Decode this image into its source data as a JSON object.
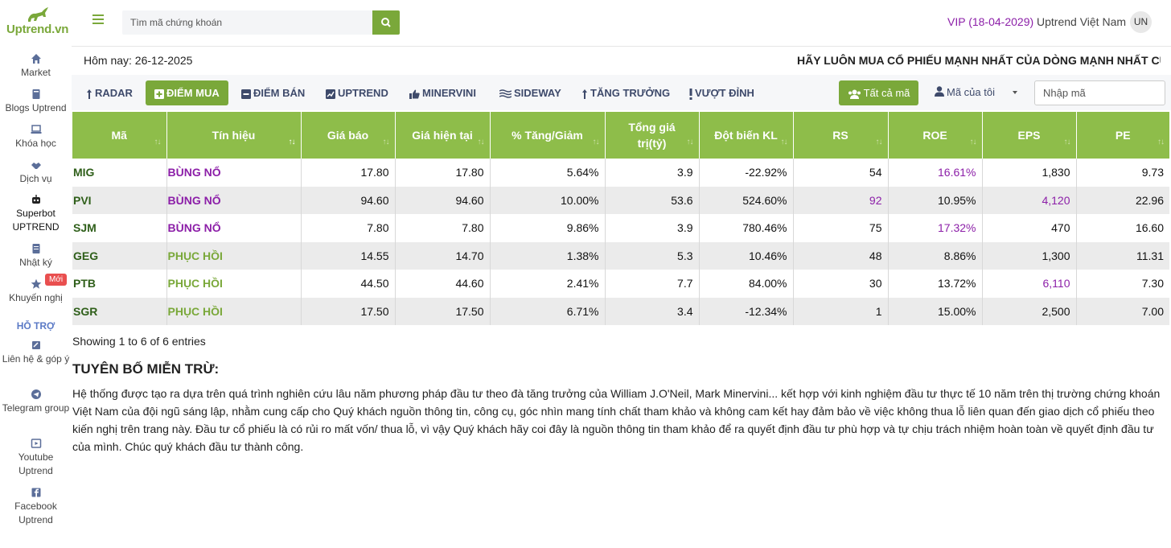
{
  "sidebar": {
    "brand": "Uptrend.vn",
    "items": [
      {
        "label": "Market",
        "icon": "home-icon"
      },
      {
        "label": "Blogs Uptrend",
        "icon": "book-icon"
      },
      {
        "label": "Khóa học",
        "icon": "laptop-icon"
      },
      {
        "label": "Dịch vụ",
        "icon": "handshake-icon"
      },
      {
        "label": "Superbot UPTREND",
        "icon": "robot-icon"
      },
      {
        "label": "Nhật ký",
        "icon": "journal-icon"
      },
      {
        "label": "Khuyến nghị",
        "icon": "star-icon"
      }
    ],
    "new_badge": "Mới",
    "support_heading": "HỖ TRỢ",
    "support_items": [
      {
        "label": "Liên hệ & góp ý",
        "icon": "feedback-icon"
      },
      {
        "label": "Telegram group",
        "icon": "telegram-icon"
      },
      {
        "label": "Youtube Uptrend",
        "icon": "youtube-icon"
      },
      {
        "label": "Facebook Uptrend",
        "icon": "facebook-icon"
      }
    ]
  },
  "header": {
    "search_placeholder": "Tìm mã chứng khoán",
    "vip": "VIP (18-04-2029)",
    "user_name": "Uptrend Việt Nam",
    "avatar_initials": "UN"
  },
  "today": "Hôm nay: 26-12-2025",
  "slogan": "HÃY LUÔN MUA CỔ PHIẾU MẠNH NHẤT CỦA DÒNG MẠNH NHẤT CỦA TI",
  "tabs": [
    {
      "label": "RADAR",
      "icon": "arrow-up-icon"
    },
    {
      "label": "ĐIỂM MUA",
      "icon": "plus-square-icon"
    },
    {
      "label": "ĐIỂM BÁN",
      "icon": "minus-square-icon"
    },
    {
      "label": "UPTREND",
      "icon": "chart-icon"
    },
    {
      "label": "MINERVINI",
      "icon": "thumbs-up-icon"
    },
    {
      "label": "SIDEWAY",
      "icon": "waves-icon"
    },
    {
      "label": "TĂNG TRƯỞNG",
      "icon": "arrow-up-icon"
    },
    {
      "label": "VƯỢT ĐỈNH",
      "icon": "exclamation-icon"
    }
  ],
  "filter": {
    "all_label": "Tất cả mã",
    "mine_label": "Mã của tôi",
    "code_placeholder": "Nhập mã"
  },
  "table": {
    "columns": [
      "Mã",
      "Tín hiệu",
      "Giá báo",
      "Giá hiện tại",
      "% Tăng/Giảm",
      "Tổng giá trị(tỷ)",
      "Đột biến KL",
      "RS",
      "ROE",
      "EPS",
      "PE"
    ],
    "rows": [
      {
        "ma": "MIG",
        "tin_hieu": "BÙNG NỔ",
        "gia_bao": "17.80",
        "gia_hien_tai": "17.80",
        "pct": "5.64%",
        "tong_gia_tri": "3.9",
        "dot_bien_kl": "-22.92%",
        "rs": "54",
        "roe": "16.61%",
        "eps": "1,830",
        "pe": "9.73"
      },
      {
        "ma": "PVI",
        "tin_hieu": "BÙNG NỔ",
        "gia_bao": "94.60",
        "gia_hien_tai": "94.60",
        "pct": "10.00%",
        "tong_gia_tri": "53.6",
        "dot_bien_kl": "524.60%",
        "rs": "92",
        "roe": "10.95%",
        "eps": "4,120",
        "pe": "22.96"
      },
      {
        "ma": "SJM",
        "tin_hieu": "BÙNG NỔ",
        "gia_bao": "7.80",
        "gia_hien_tai": "7.80",
        "pct": "9.86%",
        "tong_gia_tri": "3.9",
        "dot_bien_kl": "780.46%",
        "rs": "75",
        "roe": "17.32%",
        "eps": "470",
        "pe": "16.60"
      },
      {
        "ma": "GEG",
        "tin_hieu": "PHỤC HỒI",
        "gia_bao": "14.55",
        "gia_hien_tai": "14.70",
        "pct": "1.38%",
        "tong_gia_tri": "5.3",
        "dot_bien_kl": "10.46%",
        "rs": "48",
        "roe": "8.86%",
        "eps": "1,300",
        "pe": "11.31"
      },
      {
        "ma": "PTB",
        "tin_hieu": "PHỤC HỒI",
        "gia_bao": "44.50",
        "gia_hien_tai": "44.60",
        "pct": "2.41%",
        "tong_gia_tri": "7.7",
        "dot_bien_kl": "84.00%",
        "rs": "30",
        "roe": "13.72%",
        "eps": "6,110",
        "pe": "7.30"
      },
      {
        "ma": "SGR",
        "tin_hieu": "PHỤC HỒI",
        "gia_bao": "17.50",
        "gia_hien_tai": "17.50",
        "pct": "6.71%",
        "tong_gia_tri": "3.4",
        "dot_bien_kl": "-12.34%",
        "rs": "1",
        "roe": "15.00%",
        "eps": "2,500",
        "pe": "7.00"
      }
    ]
  },
  "showing": "Showing 1 to 6 of 6 entries",
  "disclaimer": {
    "title": "TUYÊN BỐ MIỄN TRỪ:",
    "body": "Hệ thống được tạo ra dựa trên quá trình nghiên cứu lâu năm phương pháp đầu tư theo đà tăng trưởng của William J.O'Neil, Mark Minervini... kết hợp với kinh nghiệm đầu tư thực tế 10 năm trên thị trường chứng khoán Việt Nam của đội ngũ sáng lập, nhằm cung cấp cho Quý khách nguồn thông tin, công cụ, góc nhìn mang tính chất tham khảo và không cam kết hay đảm bảo về việc không thua lỗ liên quan đến giao dịch cổ phiếu theo kiến nghị trên trang này. Đầu tư cổ phiếu là có rủi ro mất vốn/ thua lỗ, vì vậy Quý khách hãy coi đây là nguồn thông tin tham khảo để ra quyết định đầu tư phù hợp và tự chịu trách nhiệm hoàn toàn về quyết định đầu tư của mình. Chúc quý khách đầu tư thành công."
  },
  "colors": {
    "brand_green": "#7aa83a",
    "header_green": "#8ebd4a",
    "purple": "#8c1fa8",
    "nav_text": "#3e4a6b"
  }
}
